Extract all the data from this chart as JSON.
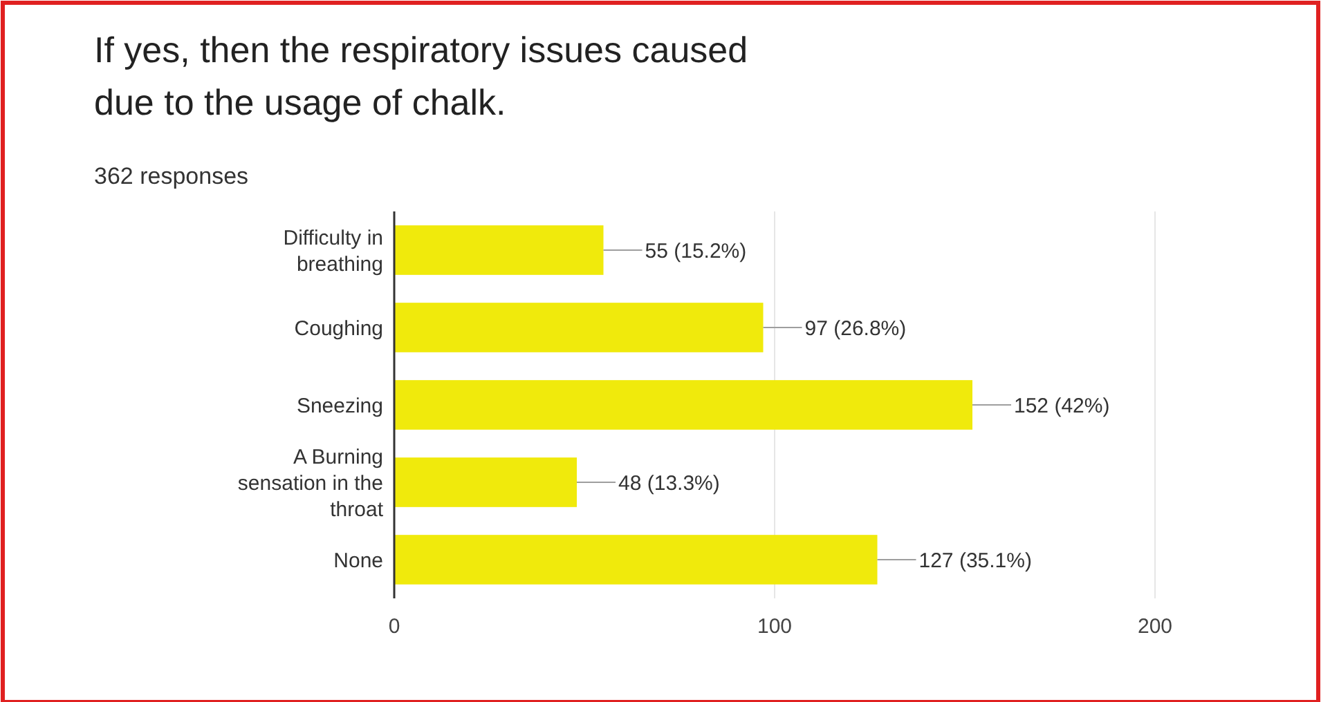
{
  "chart_data": {
    "type": "bar",
    "orientation": "horizontal",
    "title": "If yes, then the respiratory issues caused due to the usage of chalk.",
    "subtitle": "362 responses",
    "categories": [
      "Difficulty in breathing",
      "Coughing",
      "Sneezing",
      "A Burning sensation in the throat",
      "None"
    ],
    "values": [
      55,
      97,
      152,
      48,
      127
    ],
    "value_labels": [
      "55 (15.2%)",
      "97 (26.8%)",
      "152 (42%)",
      "48 (13.3%)",
      "127 (35.1%)"
    ],
    "color": "#f0ea0c",
    "xlim": [
      0,
      200
    ],
    "xticks": [
      0,
      100,
      200
    ],
    "grid": "x"
  }
}
